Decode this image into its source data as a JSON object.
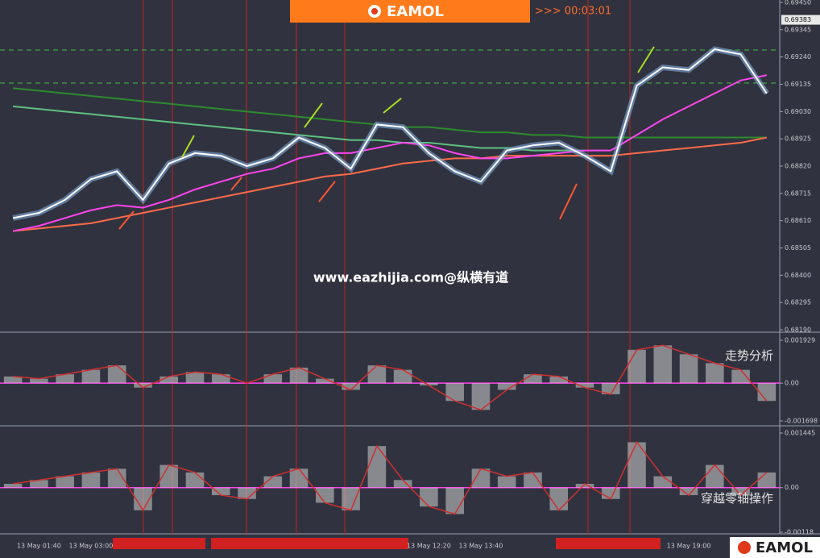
{
  "header": {
    "brand": "EAMOL",
    "timer": ">>> 00:03:01"
  },
  "watermark": "www.eazhijia.com@纵横有道",
  "footer_brand": "EAMOL",
  "chart_data": [
    {
      "type": "line",
      "last_price": 0.69383,
      "ylim": [
        0.6819,
        0.6945
      ],
      "yticks": [
        {
          "value": 0.6945,
          "label": "0.69450"
        },
        {
          "value": 0.69345,
          "label": "0.69345"
        },
        {
          "value": 0.6924,
          "label": "0.69240"
        },
        {
          "value": 0.69135,
          "label": "0.69135"
        },
        {
          "value": 0.6903,
          "label": "0.69030"
        },
        {
          "value": 0.68925,
          "label": "0.68925"
        },
        {
          "value": 0.6882,
          "label": "0.68820"
        },
        {
          "value": 0.68715,
          "label": "0.68715"
        },
        {
          "value": 0.6861,
          "label": "0.68610"
        },
        {
          "value": 0.68505,
          "label": "0.68505"
        },
        {
          "value": 0.684,
          "label": "0.68400"
        },
        {
          "value": 0.68295,
          "label": "0.68295"
        },
        {
          "value": 0.6819,
          "label": "0.68190"
        }
      ],
      "series": [
        {
          "color": "#2e8b2e",
          "values": [
            0.6912,
            0.6911,
            0.691,
            0.6909,
            0.6908,
            0.6907,
            0.6906,
            0.6905,
            0.6904,
            0.6903,
            0.6902,
            0.6901,
            0.69,
            0.6899,
            0.6898,
            0.6897,
            0.6897,
            0.6896,
            0.6895,
            0.6895,
            0.6894,
            0.6894,
            0.6893,
            0.6893,
            0.6893,
            0.6893,
            0.6893,
            0.6893,
            0.6893,
            0.6893
          ]
        },
        {
          "color": "#5fc080",
          "values": [
            0.6905,
            0.6904,
            0.6903,
            0.6902,
            0.6901,
            0.69,
            0.6899,
            0.6898,
            0.6897,
            0.6896,
            0.6895,
            0.6894,
            0.6893,
            0.6892,
            0.6892,
            0.6891,
            0.6891,
            0.689,
            0.6889,
            0.6889,
            0.6888,
            0.6888,
            0.6888,
            null,
            null,
            null,
            null,
            null,
            null,
            null
          ]
        },
        {
          "color": "#ff6a4a",
          "values": [
            0.6857,
            0.6858,
            0.6859,
            0.686,
            0.6862,
            0.6864,
            0.6866,
            0.6868,
            0.687,
            0.6872,
            0.6874,
            0.6876,
            0.6878,
            0.6879,
            0.6881,
            0.6883,
            0.6884,
            0.6885,
            0.6885,
            0.6886,
            0.6886,
            0.6886,
            0.6886,
            0.6886,
            0.6887,
            0.6888,
            0.6889,
            0.689,
            0.6891,
            0.6893
          ]
        },
        {
          "color": "#ff44ee",
          "values": [
            0.6857,
            0.6859,
            0.6862,
            0.6865,
            0.6867,
            0.6866,
            0.6869,
            0.6873,
            0.6876,
            0.6879,
            0.6881,
            0.6885,
            0.6887,
            0.6887,
            0.6889,
            0.6891,
            0.689,
            0.6887,
            0.6885,
            0.6885,
            0.6886,
            0.6887,
            0.6888,
            0.6888,
            0.6894,
            0.69,
            0.6905,
            0.691,
            0.6915,
            0.6917
          ]
        },
        {
          "color": "#ffffff",
          "values": [
            0.6862,
            0.6864,
            0.6869,
            0.6877,
            0.688,
            0.6869,
            0.6883,
            0.6887,
            0.6886,
            0.6882,
            0.6885,
            0.6893,
            0.6889,
            0.6881,
            0.6898,
            0.6897,
            0.6887,
            0.688,
            0.6876,
            0.6888,
            0.689,
            0.6891,
            0.6886,
            0.688,
            0.6913,
            0.692,
            0.6919,
            0.6927,
            0.6925,
            0.691
          ]
        }
      ]
    },
    {
      "type": "bar",
      "annotation": "走势分析",
      "color": "#d0d0d0",
      "line_color": "#d03030",
      "ylim": [
        -0.001698,
        0.001929
      ],
      "yticks": [
        0.001929,
        {
          "value": 0,
          "label": "0.00"
        },
        -0.001698
      ],
      "values": [
        0.0003,
        0.0002,
        0.0004,
        0.0006,
        0.0008,
        -0.0002,
        0.0003,
        0.0005,
        0.0004,
        0.0,
        0.0004,
        0.0007,
        0.0002,
        -0.0003,
        0.0008,
        0.0006,
        -0.0001,
        -0.0008,
        -0.0012,
        -0.0003,
        0.0004,
        0.0003,
        -0.0002,
        -0.0005,
        0.0015,
        0.0017,
        0.0013,
        0.0009,
        0.0006,
        -0.0008
      ]
    },
    {
      "type": "bar",
      "annotation": "穿越零轴操作",
      "color": "#d0d0d0",
      "line_color": "#d03030",
      "ylim": [
        -0.00118,
        0.001445
      ],
      "yticks": [
        0.001445,
        {
          "value": 0,
          "label": "0.00"
        },
        -0.00118
      ],
      "categories": [
        null,
        "13 May 01:40",
        null,
        "13 May 03:00",
        null,
        null,
        null,
        null,
        null,
        null,
        null,
        null,
        null,
        null,
        null,
        null,
        "13 May 12:20",
        null,
        "13 May 13:40",
        null,
        null,
        null,
        null,
        null,
        null,
        null,
        "13 May 19:00",
        null,
        null,
        null
      ],
      "values": [
        0.0001,
        0.0002,
        0.0003,
        0.0004,
        0.0005,
        -0.0006,
        0.0006,
        0.0004,
        -0.0002,
        -0.0003,
        0.0003,
        0.0005,
        -0.0004,
        -0.0006,
        0.0011,
        0.0002,
        -0.0005,
        -0.0007,
        0.0005,
        0.0003,
        0.0004,
        -0.0006,
        0.0001,
        -0.0003,
        0.0012,
        0.0003,
        -0.0002,
        0.0006,
        -0.0002,
        0.0004
      ]
    }
  ]
}
